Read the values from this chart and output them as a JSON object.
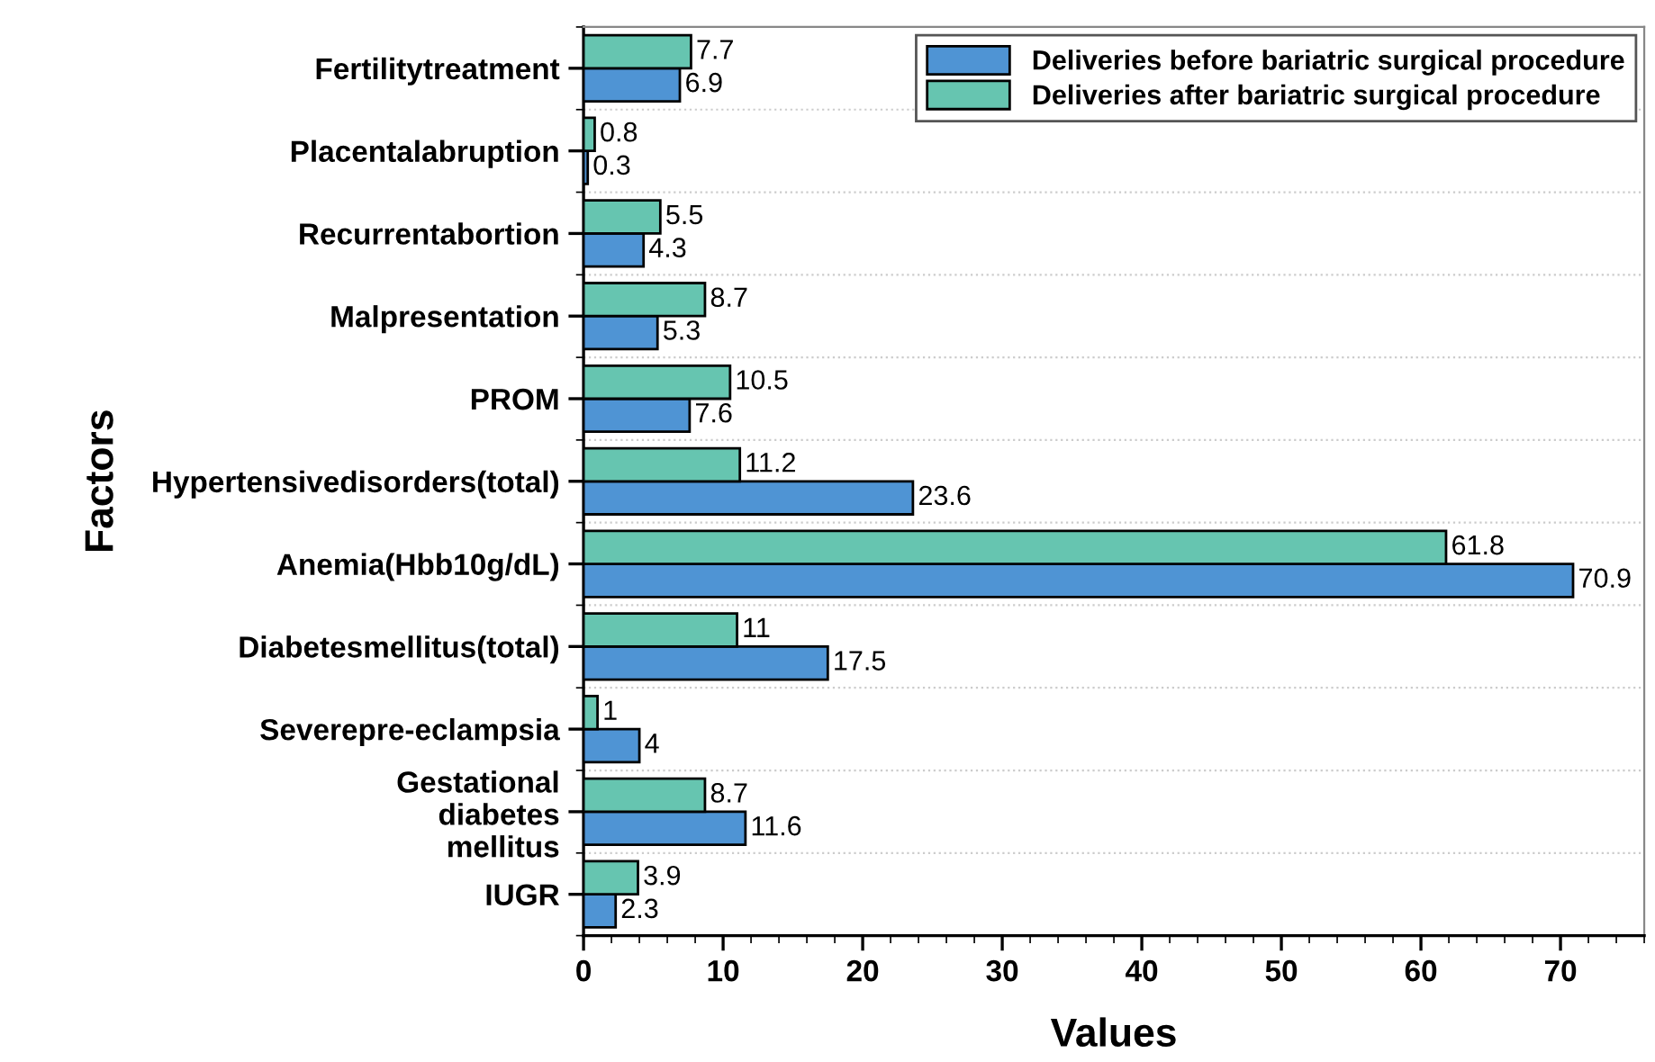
{
  "chart_data": {
    "type": "bar",
    "orientation": "horizontal",
    "xlabel": "Values",
    "ylabel": "Factors",
    "categories": [
      "Fertilitytreatment",
      "Placentalabruption",
      "Recurrentabortion",
      "Malpresentation",
      "PROM",
      "Hypertensivedisorders(total)",
      "Anemia(Hbb10g/dL)",
      "Diabetesmellitus(total)",
      "Severepre-eclampsia",
      "Gestational\ndiabetes\nmellitus",
      "IUGR"
    ],
    "series": [
      {
        "name": "Deliveries before bariatric surgical procedure",
        "color": "#4f94d4",
        "values": [
          6.9,
          0.3,
          4.3,
          5.3,
          7.6,
          23.6,
          70.9,
          17.5,
          4,
          11.6,
          2.3
        ]
      },
      {
        "name": "Deliveries after bariatric surgical procedure",
        "color": "#66c5b0",
        "values": [
          7.7,
          0.8,
          5.5,
          8.7,
          10.5,
          11.2,
          61.8,
          11,
          1,
          8.7,
          3.9
        ]
      }
    ],
    "xlim": [
      0,
      76
    ],
    "xticks": [
      0,
      10,
      20,
      30,
      40,
      50,
      60,
      70
    ],
    "data_labels": true,
    "grid": "y",
    "legend": "top right"
  }
}
